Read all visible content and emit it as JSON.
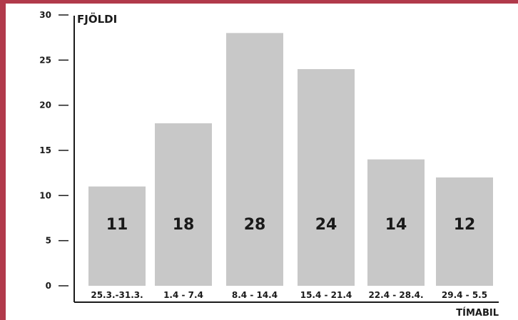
{
  "chart_data": {
    "type": "bar",
    "title": "",
    "ylabel": "FJÖLDI",
    "xlabel": "TÍMABIL",
    "ylim": [
      0,
      30
    ],
    "yticks": [
      0,
      5,
      10,
      15,
      20,
      25,
      30
    ],
    "grid": false,
    "legend": "none",
    "categories": [
      "25.3.-31.3.",
      "1.4 - 7.4",
      "8.4 - 14.4",
      "15.4 - 21.4",
      "22.4 - 28.4.",
      "29.4 - 5.5"
    ],
    "values": [
      11,
      18,
      28,
      24,
      14,
      12
    ],
    "data_labels": [
      "11",
      "18",
      "28",
      "24",
      "14",
      "12"
    ],
    "colors": {
      "bar": "#c8c8c8",
      "axis": "#1a1a1a",
      "frame": "#b13a4b"
    }
  }
}
